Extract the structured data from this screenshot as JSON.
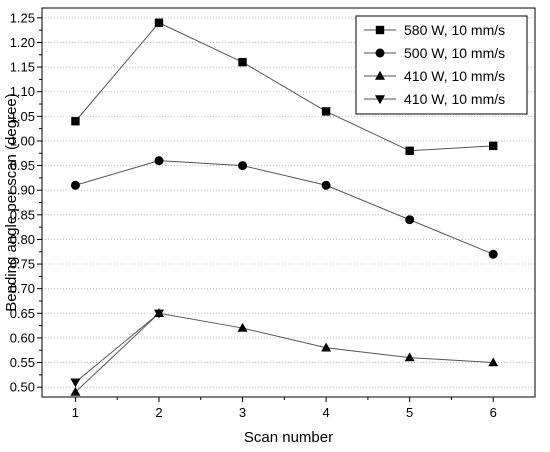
{
  "chart_data": {
    "type": "line",
    "title": "",
    "xlabel": "Scan number",
    "ylabel": "Bending angle per scan (degree)",
    "x": [
      1,
      2,
      3,
      4,
      5,
      6
    ],
    "xlim": [
      0.6,
      6.5
    ],
    "ylim": [
      0.48,
      1.27
    ],
    "xticks": [
      1,
      2,
      3,
      4,
      5,
      6
    ],
    "yticks": [
      0.5,
      0.55,
      0.6,
      0.65,
      0.7,
      0.75,
      0.8,
      0.85,
      0.9,
      0.95,
      1.0,
      1.05,
      1.1,
      1.15,
      1.2,
      1.25
    ],
    "grid": "horizontal dotted",
    "legend_position": "top-right",
    "series": [
      {
        "name": "580 W, 10 mm/s",
        "marker": "square",
        "x": [
          1,
          2,
          3,
          4,
          5,
          6
        ],
        "values": [
          1.04,
          1.24,
          1.16,
          1.06,
          0.98,
          0.99
        ]
      },
      {
        "name": "500 W, 10 mm/s",
        "marker": "circle",
        "x": [
          1,
          2,
          3,
          4,
          5,
          6
        ],
        "values": [
          0.91,
          0.96,
          0.95,
          0.91,
          0.84,
          0.77
        ]
      },
      {
        "name": "410 W, 10 mm/s",
        "marker": "triangle-up",
        "x": [
          1,
          2,
          3,
          4,
          5,
          6
        ],
        "values": [
          0.49,
          0.65,
          0.62,
          0.58,
          0.56,
          0.55
        ]
      },
      {
        "name": "410 W, 10 mm/s",
        "marker": "triangle-down",
        "x": [
          1,
          2
        ],
        "values": [
          0.51,
          0.65
        ]
      }
    ],
    "colors": {
      "line": "#555555",
      "marker": "#000000",
      "grid": "#bbbbbb"
    }
  }
}
